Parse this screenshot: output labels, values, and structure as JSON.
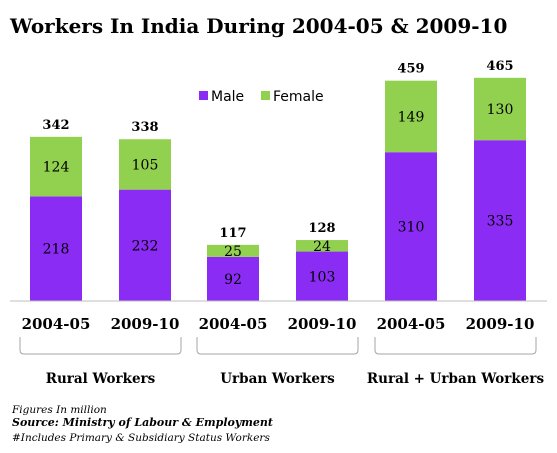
{
  "chart_data": {
    "type": "bar",
    "stacked": true,
    "title": "Workers In India During 2004-05 & 2009-10",
    "categories": [
      "2004-05",
      "2009-10",
      "2004-05",
      "2009-10",
      "2004-05",
      "2009-10"
    ],
    "groups": [
      {
        "label": "Rural Workers",
        "category_indices": [
          0,
          1
        ]
      },
      {
        "label": "Urban Workers",
        "category_indices": [
          2,
          3
        ]
      },
      {
        "label": "Rural + Urban Workers",
        "category_indices": [
          4,
          5
        ]
      }
    ],
    "series": [
      {
        "name": "Male",
        "values": [
          218,
          232,
          92,
          103,
          310,
          335
        ],
        "color": "#8b2cf5"
      },
      {
        "name": "Female",
        "values": [
          124,
          105,
          25,
          24,
          149,
          130
        ],
        "color": "#92d050"
      }
    ],
    "totals": [
      342,
      338,
      117,
      128,
      459,
      465
    ],
    "legend_position": "top-right",
    "ylim": [
      0,
      475
    ],
    "grid": false
  },
  "notes": {
    "units": "Figures In million",
    "source": "Source: Ministry of Labour & Employment",
    "footnote": "#Includes Primary & Subsidiary Status Workers"
  }
}
